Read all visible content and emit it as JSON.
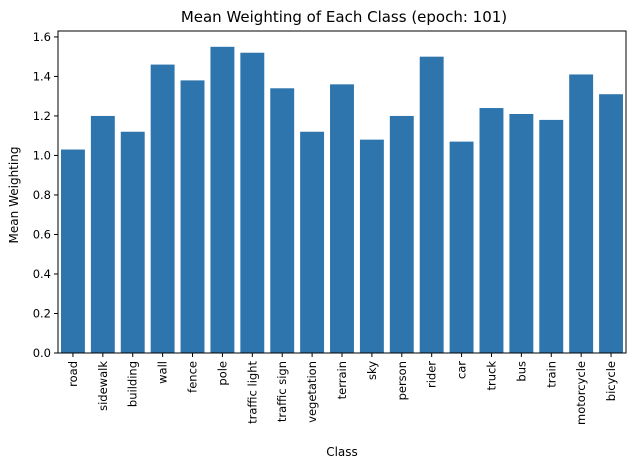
{
  "chart_data": {
    "type": "bar",
    "title": "Mean Weighting of Each Class (epoch: 101)",
    "xlabel": "Class",
    "ylabel": "Mean Weighting",
    "categories": [
      "road",
      "sidewalk",
      "building",
      "wall",
      "fence",
      "pole",
      "traffic light",
      "traffic sign",
      "vegetation",
      "terrain",
      "sky",
      "person",
      "rider",
      "car",
      "truck",
      "bus",
      "train",
      "motorcycle",
      "bicycle"
    ],
    "values": [
      1.03,
      1.2,
      1.12,
      1.46,
      1.38,
      1.55,
      1.52,
      1.34,
      1.12,
      1.36,
      1.08,
      1.2,
      1.5,
      1.07,
      1.24,
      1.21,
      1.18,
      1.41,
      1.31
    ],
    "yticks": [
      "0.0",
      "0.2",
      "0.4",
      "0.6",
      "0.8",
      "1.0",
      "1.2",
      "1.4",
      "1.6"
    ],
    "ylim": [
      0,
      1.63
    ],
    "bar_color": "#2e75ad",
    "grid": false
  }
}
